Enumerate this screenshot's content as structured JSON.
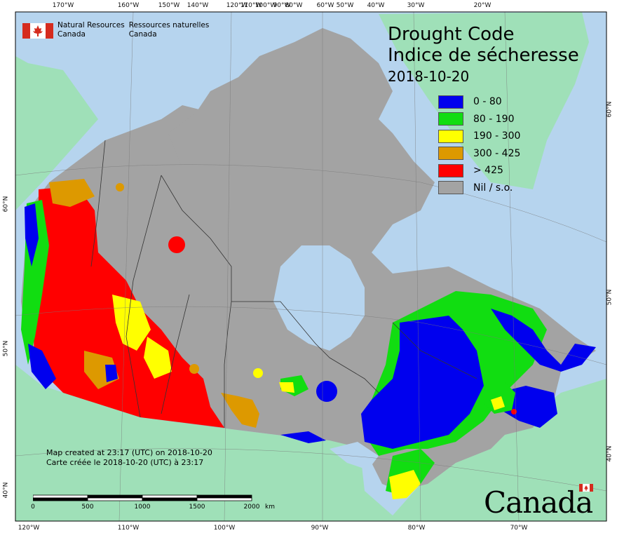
{
  "map": {
    "title_en": "Drought Code",
    "title_fr": "Indice de sécheresse",
    "date": "2018-10-20",
    "agency_en_line1": "Natural Resources",
    "agency_en_line2": "Canada",
    "agency_fr_line1": "Ressources naturelles",
    "agency_fr_line2": "Canada",
    "created_en": "Map created at 23:17 (UTC) on 2018-10-20",
    "created_fr": "Carte créée le 2018-10-20 (UTC) à 23:17",
    "wordmark": "Canada",
    "scale_unit": "km",
    "scale_labels": [
      "0",
      "500",
      "1000",
      "1500",
      "2000"
    ]
  },
  "legend": [
    {
      "label": "0 - 80",
      "color": "#0000ee"
    },
    {
      "label": "80 - 190",
      "color": "#11dd11"
    },
    {
      "label": "190 - 300",
      "color": "#ffff00"
    },
    {
      "label": "300 - 425",
      "color": "#dd9900"
    },
    {
      "label": "> 425",
      "color": "#ff0000"
    },
    {
      "label": "Nil / s.o.",
      "color": "#a3a3a3"
    }
  ],
  "graticule": {
    "top": [
      "170°W",
      "160°W",
      "150°W",
      "140°W",
      "120°W",
      "110°W",
      "100°W",
      "90°W",
      "80°W",
      "60°W",
      "50°W",
      "40°W",
      "30°W",
      "20°W"
    ],
    "bottom": [
      "120°W",
      "110°W",
      "100°W",
      "90°W",
      "80°W",
      "70°W"
    ],
    "left": [
      "60°N",
      "50°N",
      "40°N"
    ],
    "right": [
      "60°N",
      "50°N",
      "40°N"
    ]
  },
  "colors": {
    "ocean": "#b6d4ee",
    "land_outside": "#9fe0b8",
    "nil": "#a3a3a3"
  }
}
